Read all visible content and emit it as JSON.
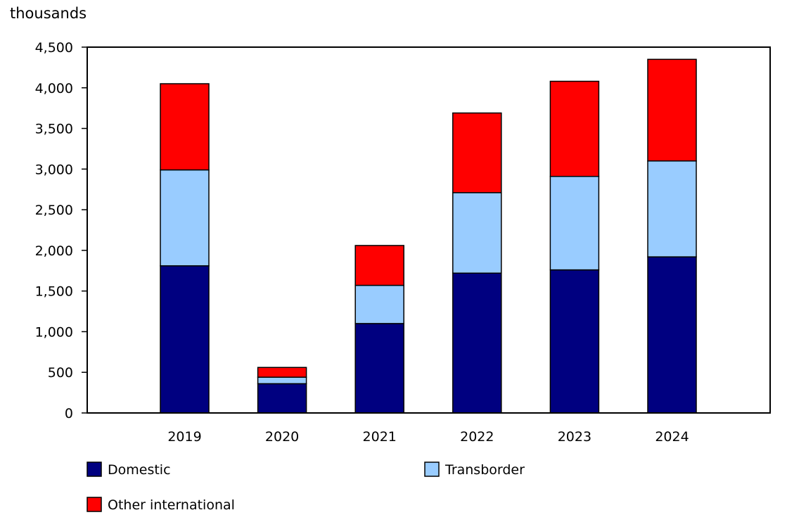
{
  "chart_data": {
    "type": "bar",
    "stacked": true,
    "title": "",
    "xlabel": "",
    "ylabel": "thousands",
    "ylim": [
      0,
      4500
    ],
    "yticks": [
      0,
      500,
      1000,
      1500,
      2000,
      2500,
      3000,
      3500,
      4000,
      4500
    ],
    "ytick_labels": [
      "0",
      "500",
      "1,000",
      "1,500",
      "2,000",
      "2,500",
      "3,000",
      "3,500",
      "4,000",
      "4,500"
    ],
    "categories": [
      "2019",
      "2020",
      "2021",
      "2022",
      "2023",
      "2024"
    ],
    "series": [
      {
        "name": "Domestic",
        "color": "#000080",
        "values": [
          1810,
          360,
          1100,
          1720,
          1760,
          1920
        ]
      },
      {
        "name": "Transborder",
        "color": "#99ccff",
        "values": [
          1180,
          80,
          470,
          990,
          1150,
          1180
        ]
      },
      {
        "name": "Other international",
        "color": "#ff0000",
        "values": [
          1060,
          120,
          490,
          980,
          1170,
          1250
        ]
      }
    ],
    "grid": false,
    "legend": "bottom"
  }
}
